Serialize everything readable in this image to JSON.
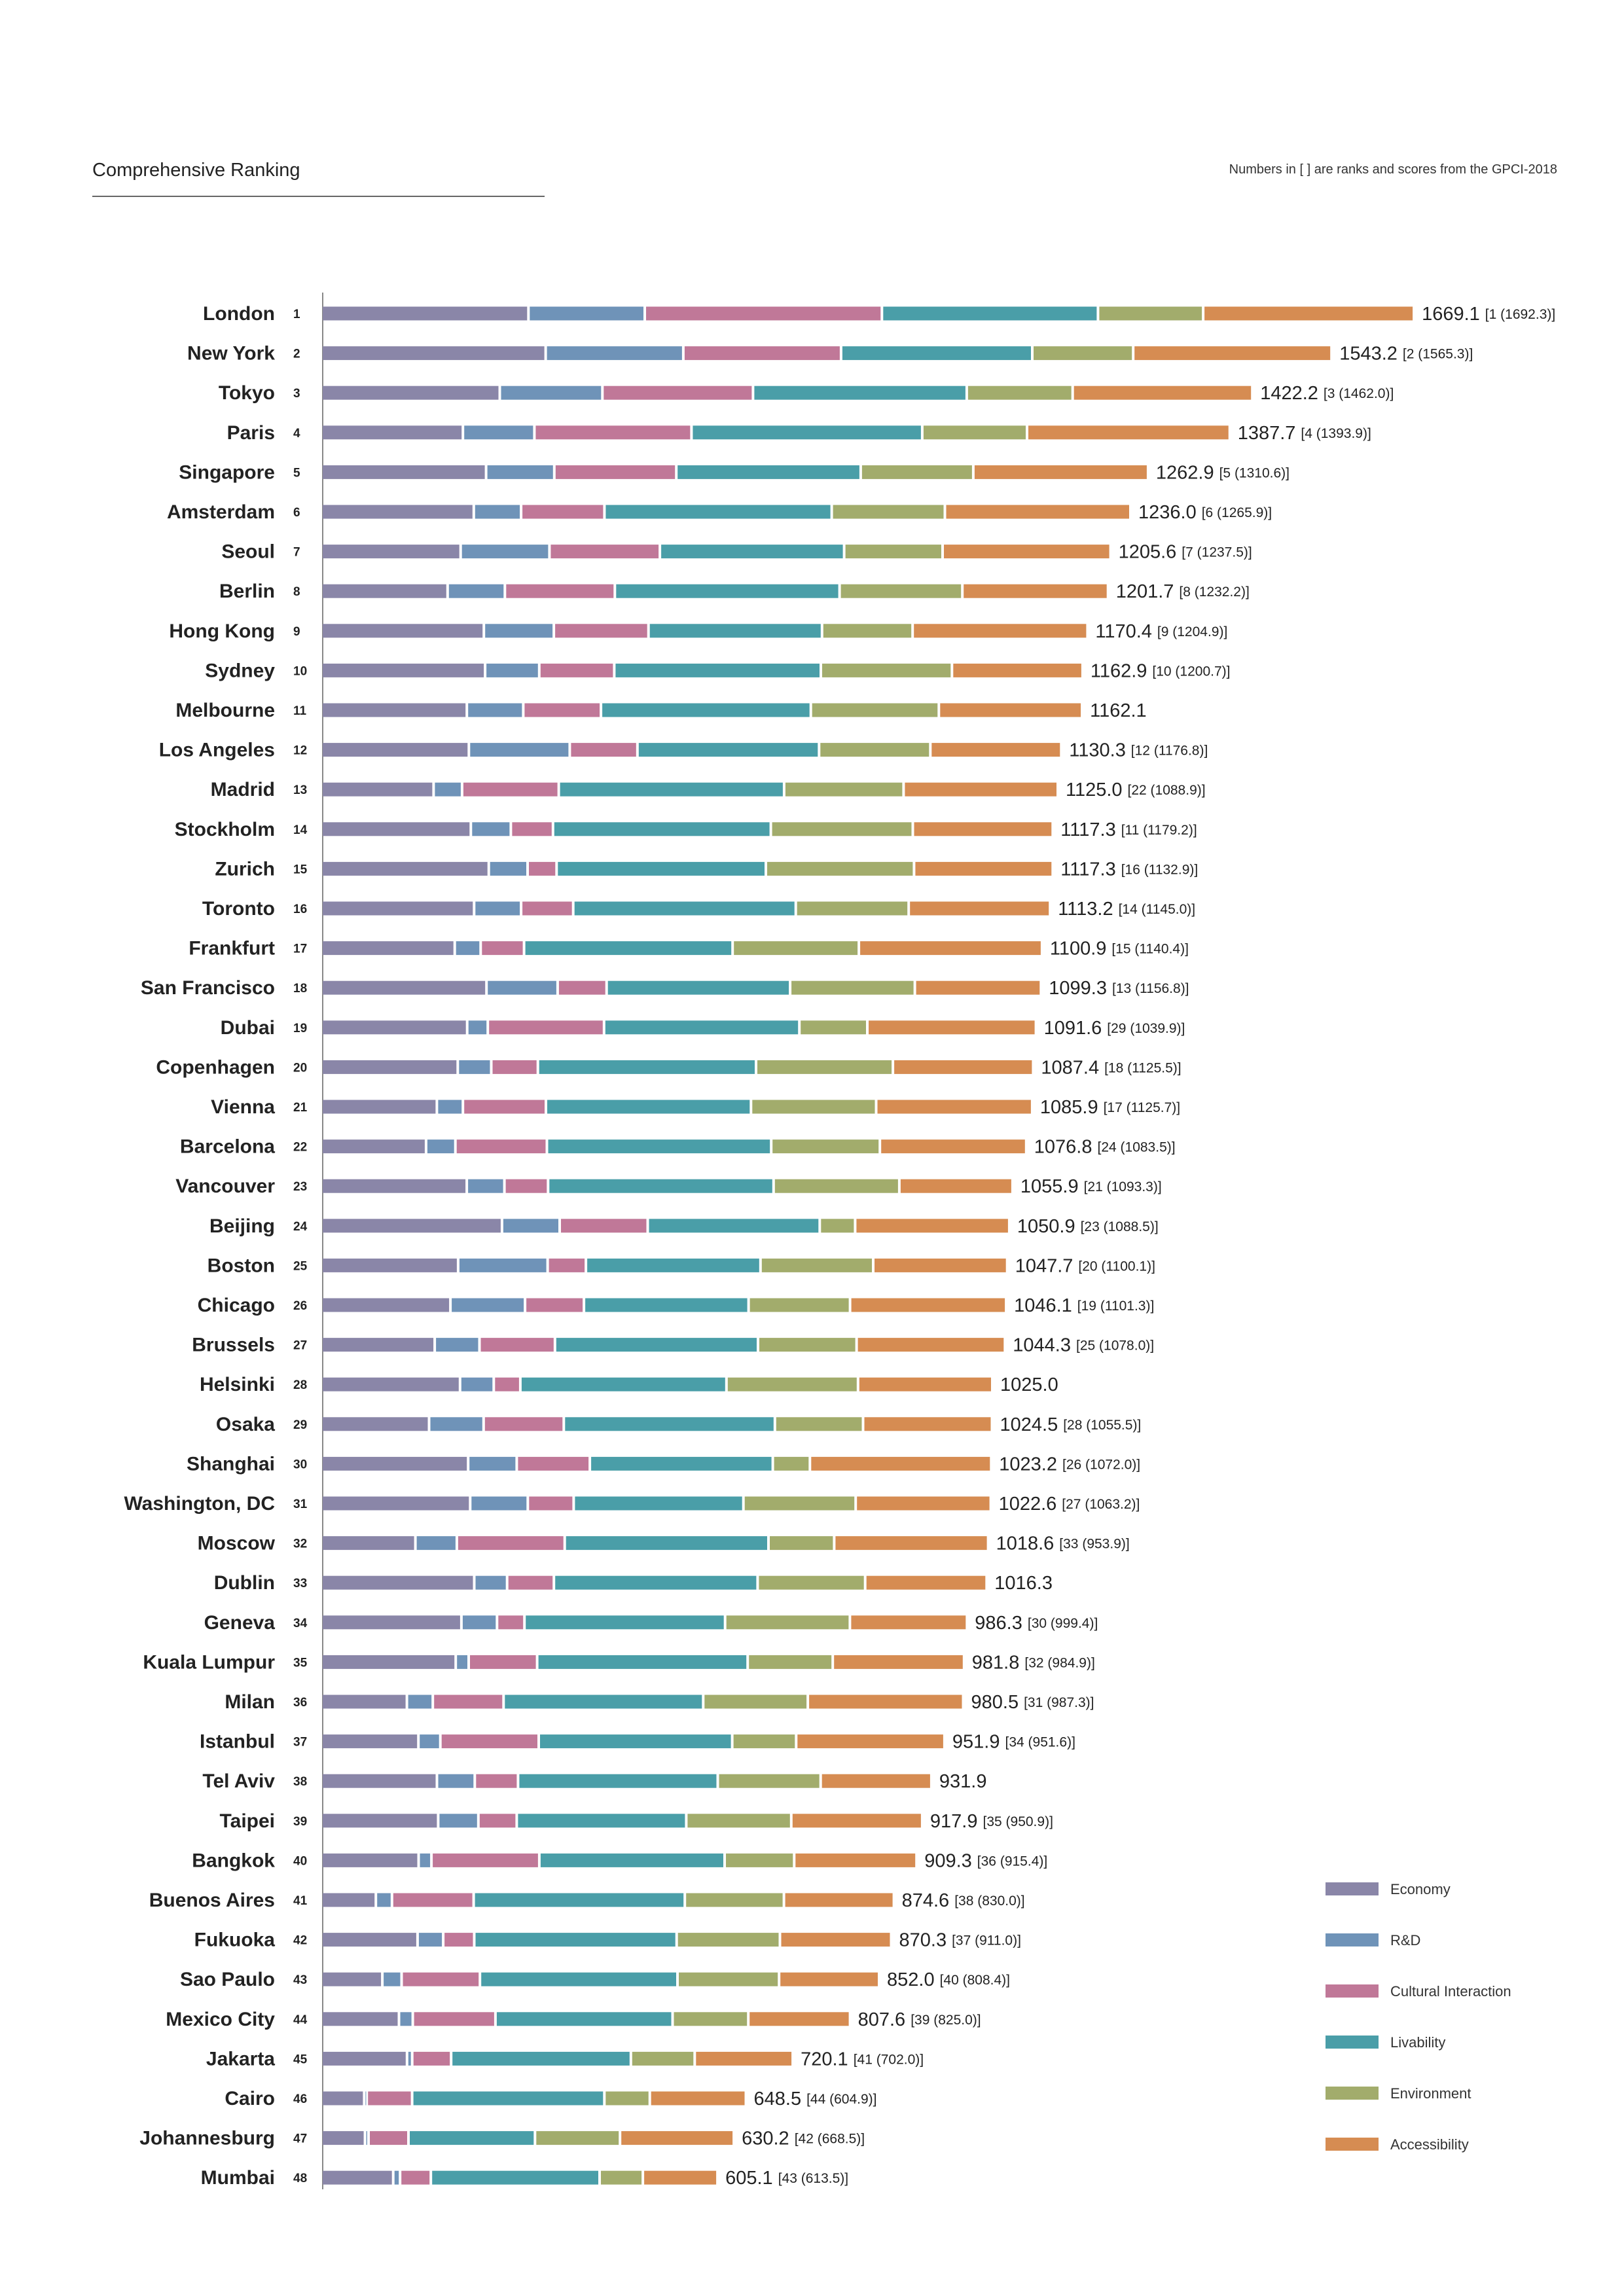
{
  "header": {
    "title": "Comprehensive Ranking",
    "note": "Numbers in [ ] are ranks and scores from the GPCI-2018"
  },
  "colors": {
    "Economy": "#8a86a8",
    "R&D": "#6f93b8",
    "Cultural Interaction": "#c07898",
    "Livability": "#4a9ea8",
    "Environment": "#a2ac6c",
    "Accessibility": "#d68c52"
  },
  "chart_data": {
    "type": "bar",
    "orientation": "horizontal",
    "stacked": true,
    "title": "Comprehensive Ranking",
    "categories": [
      "London",
      "New York",
      "Tokyo",
      "Paris",
      "Singapore",
      "Amsterdam",
      "Seoul",
      "Berlin",
      "Hong Kong",
      "Sydney",
      "Melbourne",
      "Los Angeles",
      "Madrid",
      "Stockholm",
      "Zurich",
      "Toronto",
      "Frankfurt",
      "San Francisco",
      "Dubai",
      "Copenhagen",
      "Vienna",
      "Barcelona",
      "Vancouver",
      "Beijing",
      "Boston",
      "Chicago",
      "Brussels",
      "Helsinki",
      "Osaka",
      "Shanghai",
      "Washington, DC",
      "Moscow",
      "Dublin",
      "Geneva",
      "Kuala Lumpur",
      "Milan",
      "Istanbul",
      "Tel Aviv",
      "Taipei",
      "Bangkok",
      "Buenos Aires",
      "Fukuoka",
      "Sao Paulo",
      "Mexico City",
      "Jakarta",
      "Cairo",
      "Johannesburg",
      "Mumbai"
    ],
    "ranks": [
      "1",
      "2",
      "3",
      "4",
      "5",
      "6",
      "7",
      "8",
      "9",
      "10",
      "11",
      "12",
      "13",
      "14",
      "15",
      "16",
      "17",
      "18",
      "19",
      "20",
      "21",
      "22",
      "23",
      "24",
      "25",
      "26",
      "27",
      "28",
      "29",
      "30",
      "31",
      "32",
      "33",
      "34",
      "35",
      "36",
      "37",
      "38",
      "39",
      "40",
      "41",
      "42",
      "43",
      "44",
      "45",
      "46",
      "47",
      "48"
    ],
    "totals": [
      "1669.1",
      "1543.2",
      "1422.2",
      "1387.7",
      "1262.9",
      "1236.0",
      "1205.6",
      "1201.7",
      "1170.4",
      "1162.9",
      "1162.1",
      "1130.3",
      "1125.0",
      "1117.3",
      "1117.3",
      "1113.2",
      "1100.9",
      "1099.3",
      "1091.6",
      "1087.4",
      "1085.9",
      "1076.8",
      "1055.9",
      "1050.9",
      "1047.7",
      "1046.1",
      "1044.3",
      "1025.0",
      "1024.5",
      "1023.2",
      "1022.6",
      "1018.6",
      "1016.3",
      "986.3",
      "981.8",
      "980.5",
      "951.9",
      "931.9",
      "917.9",
      "909.3",
      "874.6",
      "870.3",
      "852.0",
      "807.6",
      "720.1",
      "648.5",
      "630.2",
      "605.1"
    ],
    "previous": [
      "[1 (1692.3)]",
      "[2 (1565.3)]",
      "[3 (1462.0)]",
      "[4 (1393.9)]",
      "[5 (1310.6)]",
      "[6 (1265.9)]",
      "[7 (1237.5)]",
      "[8 (1232.2)]",
      "[9 (1204.9)]",
      "[10 (1200.7)]",
      "",
      "[12 (1176.8)]",
      "[22 (1088.9)]",
      "[11 (1179.2)]",
      "[16 (1132.9)]",
      "[14 (1145.0)]",
      "[15 (1140.4)]",
      "[13 (1156.8)]",
      "[29 (1039.9)]",
      "[18 (1125.5)]",
      "[17 (1125.7)]",
      "[24 (1083.5)]",
      "[21 (1093.3)]",
      "[23 (1088.5)]",
      "[20 (1100.1)]",
      "[19 (1101.3)]",
      "[25 (1078.0)]",
      "",
      "[28 (1055.5)]",
      "[26 (1072.0)]",
      "[27 (1063.2)]",
      "[33 (953.9)]",
      "",
      "[30 (999.4)]",
      "[32 (984.9)]",
      "[31 (987.3)]",
      "[34 (951.6)]",
      "",
      "[35 (950.9)]",
      "[36 (915.4)]",
      "[38 (830.0)]",
      "[37 (911.0)]",
      "[40 (808.4)]",
      "[39 (825.0)]",
      "[41 (702.0)]",
      "[44 (604.9)]",
      "[42 (668.5)]",
      "[43 (613.5)]"
    ],
    "series": [
      {
        "name": "Economy",
        "values": [
          316.3,
          342.6,
          272.5,
          216.2,
          251.6,
          232.8,
          212.7,
          192.8,
          248.2,
          250.1,
          222.2,
          225.3,
          171.4,
          228.3,
          255.7,
          233.3,
          203.7,
          252.2,
          222.7,
          208.3,
          176.4,
          159.9,
          222.1,
          275.9,
          208.9,
          197.1,
          173.1,
          211.8,
          164.5,
          224.2,
          227.3,
          143.6,
          233.5,
          213.9,
          205.2,
          130.6,
          148.2,
          176.5,
          178.4,
          148.5,
          83.2,
          146.9,
          93.1,
          118.5,
          130.8,
          65.4,
          66.6,
          109.7
        ]
      },
      {
        "name": "R&D",
        "values": [
          177.7,
          210.3,
          156.8,
          109.2,
          104.2,
          72.3,
          135.7,
          87.5,
          106.9,
          82.7,
          86.2,
          154.1,
          43.5,
          61.1,
          59.3,
          71.8,
          39.6,
          108.7,
          31.5,
          51.2,
          39.8,
          44.8,
          57.5,
          88.1,
          136.7,
          114.0,
          68.4,
          51.5,
          83.3,
          74.2,
          88.0,
          63.3,
          50.2,
          54.4,
          19.8,
          39.6,
          33.5,
          57.8,
          61.4,
          19.6,
          24.6,
          39.2,
          29.4,
          21.1,
          7.9,
          3.8,
          5.4,
          10.5
        ]
      },
      {
        "name": "Cultural Interaction",
        "values": [
          362.3,
          241.0,
          230.1,
          240.0,
          186.4,
          127.3,
          168.7,
          168.0,
          144.6,
          114.6,
          118.7,
          103.4,
          147.7,
          64.4,
          44.3,
          79.6,
          66.3,
          74.8,
          177.6,
          71.2,
          126.8,
          139.8,
          66.7,
          134.5,
          58.5,
          90.0,
          115.3,
          40.6,
          122.5,
          111.7,
          70.1,
          164.8,
          71.5,
          41.9,
          104.6,
          108.1,
          150.3,
          66.1,
          58.6,
          164.8,
          124.8,
          47.4,
          119.7,
          126.3,
          59.5,
          69.4,
          61.0,
          47.0
        ]
      },
      {
        "name": "Livability",
        "values": [
          330.1,
          292.1,
          326.5,
          352.5,
          281.7,
          347.2,
          281.5,
          343.3,
          265.1,
          315.6,
          320.6,
          277.5,
          344.3,
          332.8,
          319.7,
          340.0,
          318.6,
          280.4,
          298.4,
          333.3,
          313.3,
          342.7,
          344.5,
          262.8,
          266.7,
          251.5,
          310.2,
          314.9,
          322.5,
          279.5,
          259.3,
          311.3,
          311.2,
          306.5,
          321.6,
          305.0,
          295.6,
          305.1,
          259.0,
          283.1,
          322.6,
          309.2,
          301.8,
          270.6,
          274.6,
          293.7,
          193.3,
          257.8
        ]
      },
      {
        "name": "Environment",
        "values": [
          160.7,
          154.2,
          161.8,
          160.1,
          172.0,
          172.9,
          150.4,
          187.6,
          138.4,
          200.3,
          195.6,
          170.0,
          182.5,
          216.9,
          226.4,
          172.5,
          192.9,
          190.5,
          103.8,
          209.1,
          191.2,
          166.0,
          192.1,
          54.1,
          172.2,
          155.0,
          150.6,
          201.0,
          134.7,
          56.7,
          171.5,
          100.4,
          164.3,
          190.7,
          130.0,
          159.8,
          97.7,
          157.2,
          160.4,
          106.3,
          151.4,
          157.8,
          155.2,
          115.7,
          97.5,
          69.4,
          129.9,
          66.1
        ]
      },
      {
        "name": "Accessibility",
        "values": [
          322.0,
          303.0,
          274.5,
          309.7,
          267.0,
          283.5,
          256.6,
          222.5,
          267.2,
          199.6,
          218.8,
          200.0,
          235.6,
          213.8,
          211.9,
          216.0,
          279.8,
          192.7,
          257.6,
          214.3,
          238.4,
          223.6,
          173.0,
          235.5,
          204.7,
          238.5,
          226.7,
          205.2,
          197.0,
          277.0,
          206.4,
          235.2,
          185.6,
          178.9,
          200.6,
          237.4,
          226.6,
          169.2,
          200.1,
          186.9,
          168.0,
          170.0,
          152.8,
          155.4,
          149.8,
          146.8,
          173.9,
          114.0
        ]
      }
    ]
  }
}
